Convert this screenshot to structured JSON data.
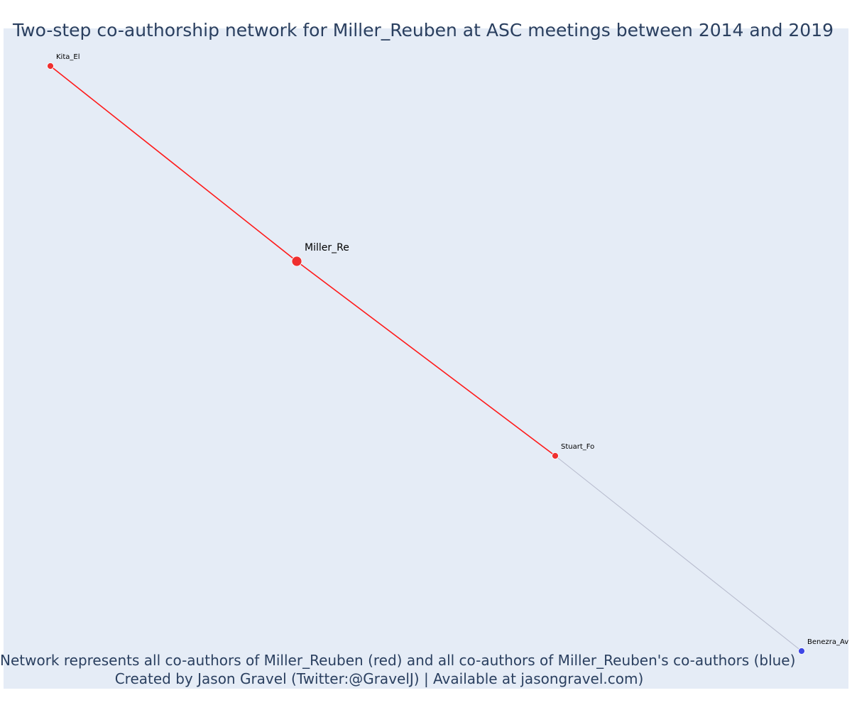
{
  "title": "Two-step co-authorship network for Miller_Reuben at ASC meetings between 2014 and 2019",
  "caption": {
    "line1": "Network represents all co-authors of Miller_Reuben (red) and all co-authors of Miller_Reuben's co-authors (blue)",
    "line2": "Created by Jason Gravel (Twitter:@GravelJ) | Available at jasongravel.com)"
  },
  "colors": {
    "plot_background": "#e5ecf6",
    "first_degree": "#ef2f2f",
    "second_degree": "#3e47e6",
    "edge_first_degree": "#ff1a1a",
    "edge_second_degree": "#b8bcce",
    "text": "#2a3f5f"
  },
  "network": {
    "nodes": [
      {
        "id": "Miller_Re",
        "label": "Miller_Re",
        "group": "focal"
      },
      {
        "id": "Kita_El",
        "label": "Kita_El",
        "group": "co-author"
      },
      {
        "id": "Stuart_Fo",
        "label": "Stuart_Fo",
        "group": "co-author"
      },
      {
        "id": "Benezra_Av",
        "label": "Benezra_Av",
        "group": "co-author-of-co-author"
      }
    ],
    "edges": [
      {
        "source": "Kita_El",
        "target": "Miller_Re",
        "type": "first_degree"
      },
      {
        "source": "Miller_Re",
        "target": "Stuart_Fo",
        "type": "first_degree"
      },
      {
        "source": "Stuart_Fo",
        "target": "Benezra_Av",
        "type": "second_degree"
      }
    ]
  }
}
